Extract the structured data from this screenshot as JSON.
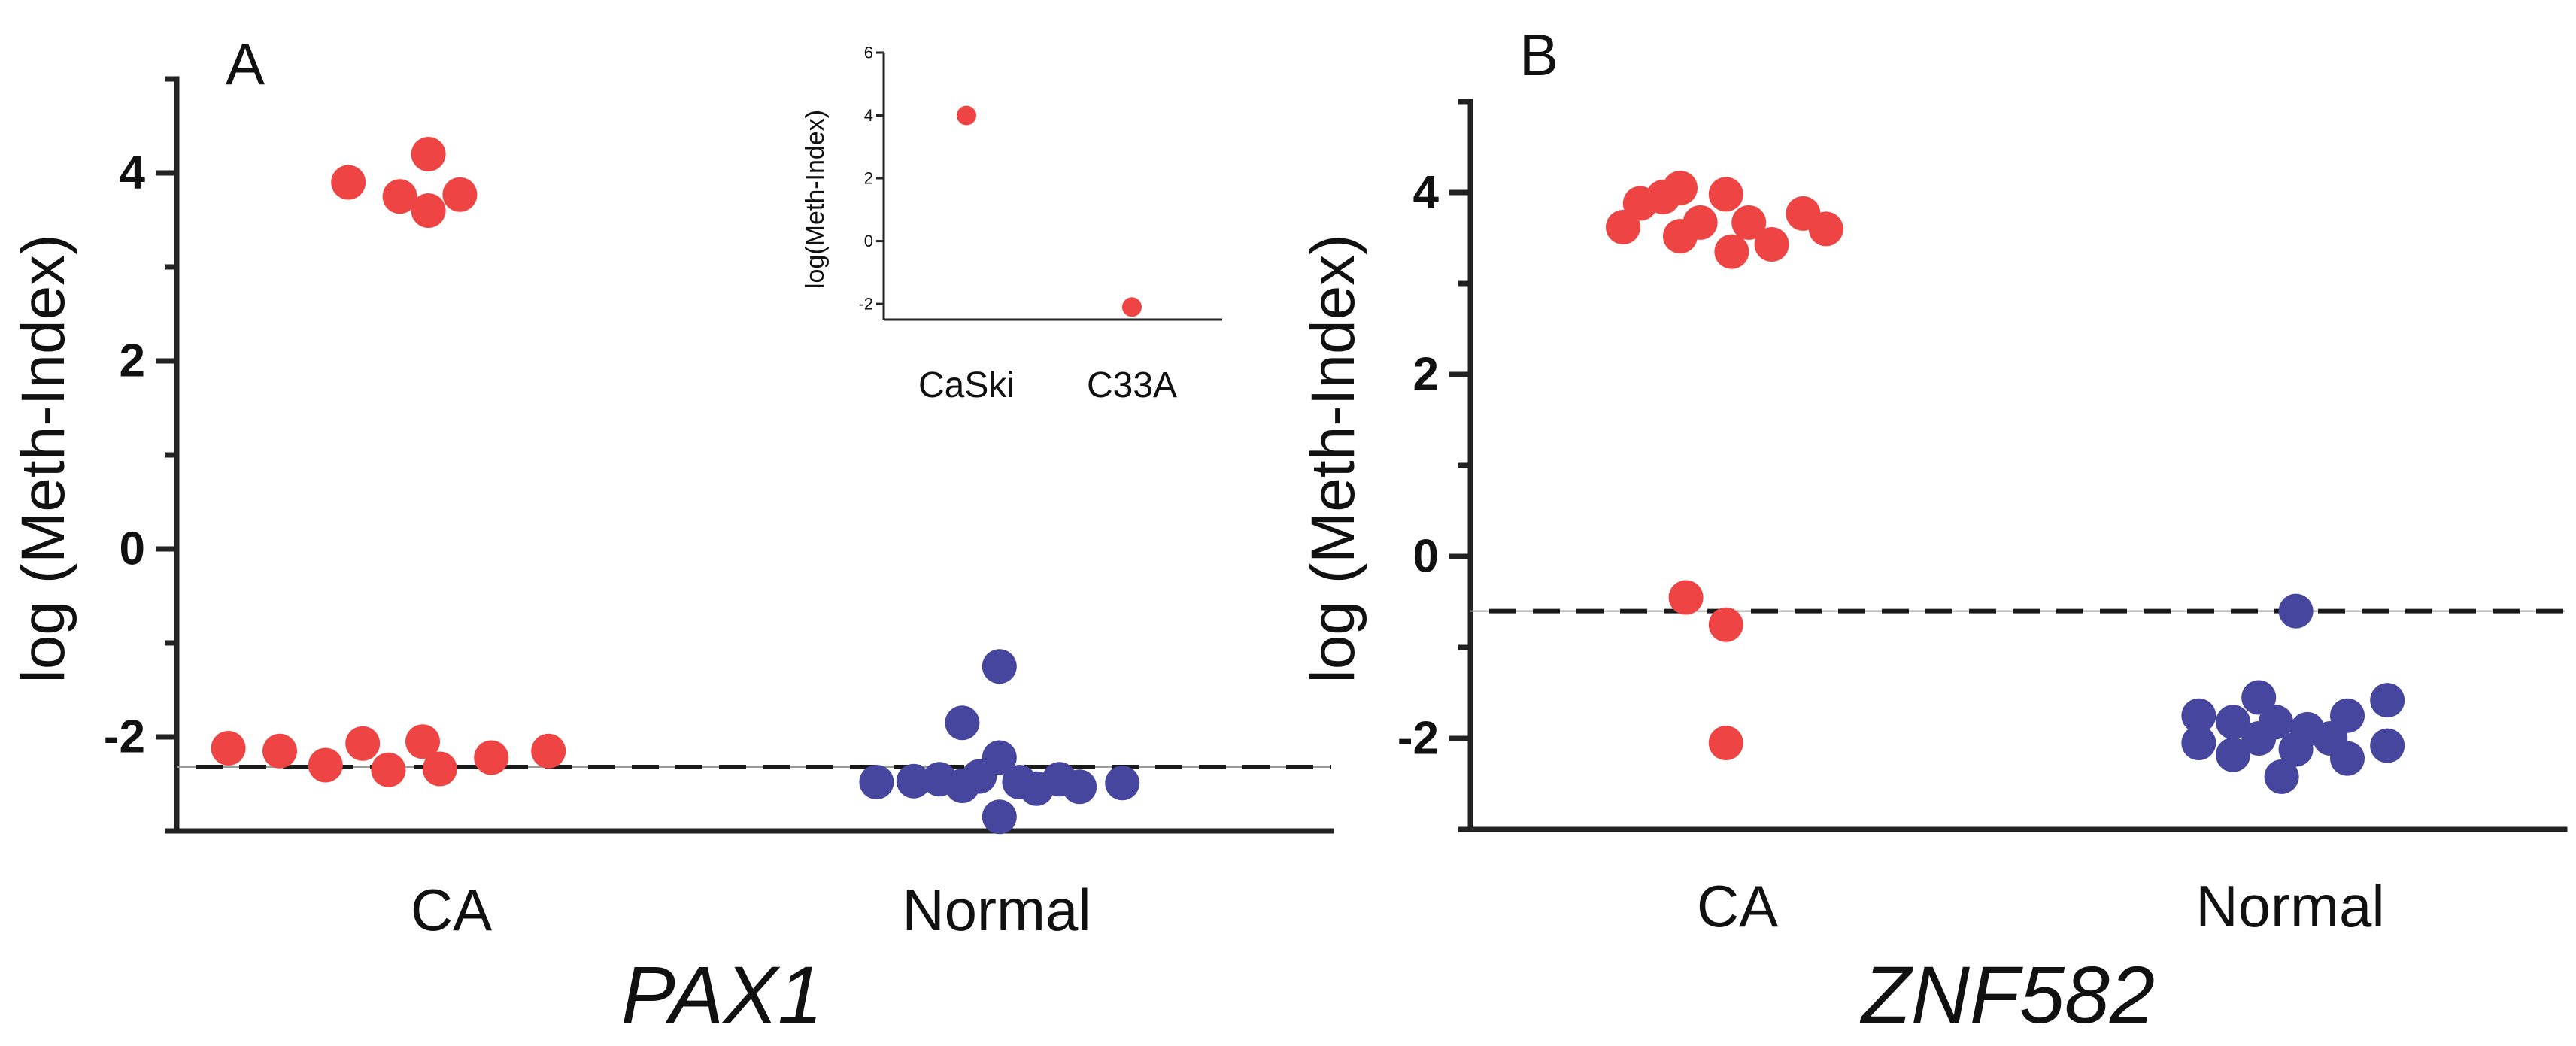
{
  "colors": {
    "ca": "#ee4444",
    "normal": "#46469e",
    "axis": "#222222"
  },
  "chart_data": [
    {
      "type": "scatter",
      "panel": "A",
      "gene": "PAX1",
      "ylabel": "log (Meth-Index)",
      "xlabel": "PAX1",
      "ylim": [
        -3,
        5
      ],
      "yticks": [
        -2,
        0,
        2,
        4
      ],
      "categories": [
        "CA",
        "Normal"
      ],
      "cutoff": -2.32,
      "series": [
        {
          "name": "CA",
          "category": "CA",
          "color": "#ee4444",
          "points": [
            {
              "offset": -0.36,
              "y": 3.9
            },
            {
              "offset": -0.18,
              "y": 3.75
            },
            {
              "offset": -0.08,
              "y": 3.6
            },
            {
              "offset": -0.08,
              "y": 4.2
            },
            {
              "offset": 0.03,
              "y": 3.77
            },
            {
              "offset": -0.78,
              "y": -2.12
            },
            {
              "offset": -0.6,
              "y": -2.15
            },
            {
              "offset": -0.44,
              "y": -2.3
            },
            {
              "offset": -0.31,
              "y": -2.07
            },
            {
              "offset": -0.22,
              "y": -2.35
            },
            {
              "offset": -0.1,
              "y": -2.05
            },
            {
              "offset": -0.04,
              "y": -2.34
            },
            {
              "offset": 0.14,
              "y": -2.22
            },
            {
              "offset": 0.34,
              "y": -2.15
            }
          ]
        },
        {
          "name": "Normal",
          "category": "Normal",
          "color": "#46469e",
          "points": [
            {
              "offset": -0.42,
              "y": -2.48
            },
            {
              "offset": -0.29,
              "y": -2.47
            },
            {
              "offset": -0.2,
              "y": -2.45
            },
            {
              "offset": -0.12,
              "y": -2.52
            },
            {
              "offset": -0.12,
              "y": -1.85
            },
            {
              "offset": -0.06,
              "y": -2.42
            },
            {
              "offset": 0.01,
              "y": -2.22
            },
            {
              "offset": 0.01,
              "y": -1.25
            },
            {
              "offset": 0.08,
              "y": -2.48
            },
            {
              "offset": 0.01,
              "y": -2.85
            },
            {
              "offset": 0.14,
              "y": -2.55
            },
            {
              "offset": 0.22,
              "y": -2.45
            },
            {
              "offset": 0.29,
              "y": -2.53
            },
            {
              "offset": 0.44,
              "y": -2.49
            }
          ]
        }
      ],
      "inset": {
        "type": "scatter",
        "ylabel": "log(Meth-Index)",
        "ylim": [
          -2.5,
          6
        ],
        "yticks": [
          -2,
          0,
          2,
          4,
          6
        ],
        "categories": [
          "CaSki",
          "C33A"
        ],
        "points": [
          {
            "category": "CaSki",
            "y": 4
          },
          {
            "category": "C33A",
            "y": -2.1
          }
        ]
      }
    },
    {
      "type": "scatter",
      "panel": "B",
      "gene": "ZNF582",
      "ylabel": "log (Meth-Index)",
      "xlabel": "ZNF582",
      "ylim": [
        -3,
        5
      ],
      "yticks": [
        -2,
        0,
        2,
        4
      ],
      "categories": [
        "CA",
        "Normal"
      ],
      "cutoff": -0.6,
      "series": [
        {
          "name": "CA",
          "category": "CA",
          "color": "#ee4444",
          "points": [
            {
              "offset": -0.4,
              "y": 3.62
            },
            {
              "offset": -0.34,
              "y": 3.88
            },
            {
              "offset": -0.26,
              "y": 3.95
            },
            {
              "offset": -0.2,
              "y": 4.05
            },
            {
              "offset": -0.2,
              "y": 3.52
            },
            {
              "offset": -0.13,
              "y": 3.67
            },
            {
              "offset": -0.04,
              "y": 3.98
            },
            {
              "offset": -0.02,
              "y": 3.35
            },
            {
              "offset": 0.04,
              "y": 3.67
            },
            {
              "offset": 0.12,
              "y": 3.43
            },
            {
              "offset": 0.23,
              "y": 3.77
            },
            {
              "offset": 0.31,
              "y": 3.6
            },
            {
              "offset": -0.18,
              "y": -0.45
            },
            {
              "offset": -0.04,
              "y": -0.75
            },
            {
              "offset": -0.04,
              "y": -2.05
            }
          ]
        },
        {
          "name": "Normal",
          "category": "Normal",
          "color": "#46469e",
          "points": [
            {
              "offset": -0.32,
              "y": -1.75
            },
            {
              "offset": -0.32,
              "y": -2.05
            },
            {
              "offset": -0.2,
              "y": -1.82
            },
            {
              "offset": -0.2,
              "y": -2.18
            },
            {
              "offset": -0.11,
              "y": -1.55
            },
            {
              "offset": -0.11,
              "y": -2.0
            },
            {
              "offset": -0.05,
              "y": -1.82
            },
            {
              "offset": -0.03,
              "y": -2.42
            },
            {
              "offset": 0.02,
              "y": -0.6
            },
            {
              "offset": 0.02,
              "y": -2.12
            },
            {
              "offset": 0.06,
              "y": -1.9
            },
            {
              "offset": 0.14,
              "y": -2.0
            },
            {
              "offset": 0.2,
              "y": -1.75
            },
            {
              "offset": 0.2,
              "y": -2.22
            },
            {
              "offset": 0.34,
              "y": -1.58
            },
            {
              "offset": 0.34,
              "y": -2.08
            }
          ]
        }
      ]
    }
  ]
}
